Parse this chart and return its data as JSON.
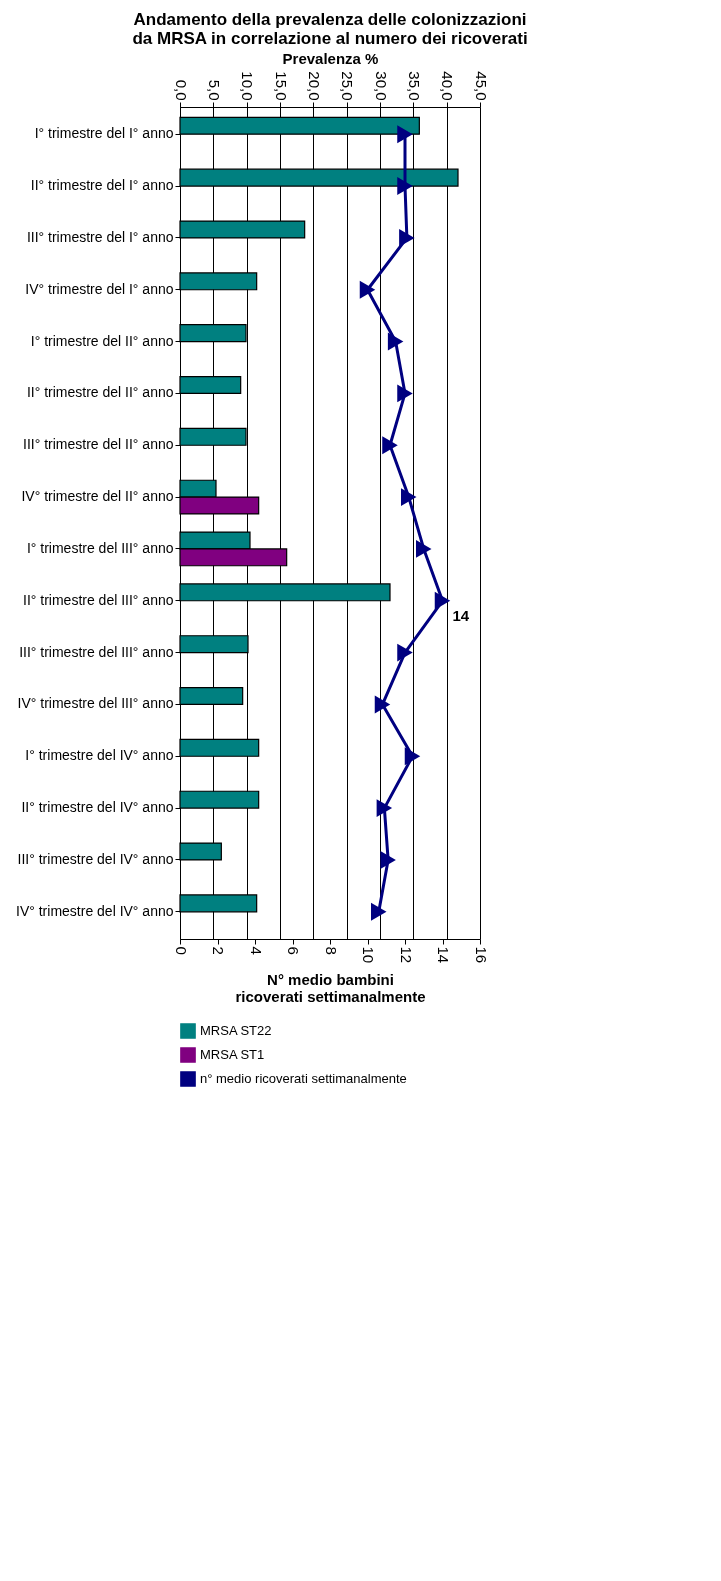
{
  "chart_data": {
    "type": "bar",
    "orientation": "horizontal",
    "title": "Andamento della prevalenza delle colonizzazioni da MRSA in correlazione al numero dei ricoverati",
    "xlabel": "Prevalenza %",
    "x2label": "N° medio bambini ricoverati settimanalmente",
    "categories": [
      "I° trimestre del I° anno",
      "II° trimestre del I° anno",
      "III° trimestre del I° anno",
      "IV° trimestre del I° anno",
      "I° trimestre del II° anno",
      "II° trimestre del II° anno",
      "III° trimestre del II° anno",
      "IV° trimestre del II° anno",
      "I° trimestre del III° anno",
      "II° trimestre del III° anno",
      "III° trimestre del III° anno",
      "IV° trimestre del III° anno",
      "I° trimestre del IV° anno",
      "II° trimestre del IV° anno",
      "III° trimestre del IV° anno",
      "IV° trimestre del IV° anno"
    ],
    "series": [
      {
        "name": "MRSA ST22",
        "color": "#008080",
        "values": [
          35.9,
          41.7,
          18.7,
          11.5,
          9.9,
          9.1,
          9.9,
          5.4,
          10.5,
          31.5,
          10.2,
          9.4,
          11.8,
          11.8,
          6.2,
          11.5
        ]
      },
      {
        "name": "MRSA ST1",
        "color": "#800080",
        "values": [
          null,
          null,
          null,
          null,
          null,
          null,
          null,
          11.8,
          16.0,
          null,
          null,
          null,
          null,
          null,
          null,
          null
        ]
      },
      {
        "name": "n° medio ricoverati settimanalmente",
        "color": "#000080",
        "type": "line",
        "axis": "x2",
        "marker": "triangle",
        "line_style": "solid",
        "values": [
          12.0,
          12.0,
          12.1,
          10.0,
          11.5,
          12.0,
          11.2,
          12.2,
          13.0,
          14.0,
          12.0,
          10.8,
          12.4,
          10.9,
          11.1,
          10.6
        ],
        "value_labels": [
          null,
          null,
          null,
          null,
          null,
          null,
          null,
          null,
          null,
          "14",
          null,
          null,
          null,
          null,
          null,
          null
        ]
      }
    ],
    "xlim": [
      0,
      45
    ],
    "xticks": [
      {
        "value": 0,
        "label": "0,0"
      },
      {
        "value": 5,
        "label": "5,0"
      },
      {
        "value": 10,
        "label": "10,0"
      },
      {
        "value": 15,
        "label": "15,0"
      },
      {
        "value": 20,
        "label": "20,0"
      },
      {
        "value": 25,
        "label": "25,0"
      },
      {
        "value": 30,
        "label": "30,0"
      },
      {
        "value": 35,
        "label": "35,0"
      },
      {
        "value": 40,
        "label": "40,0"
      },
      {
        "value": 45,
        "label": "45,0"
      }
    ],
    "x2lim": [
      0,
      16
    ],
    "x2ticks": [
      0,
      2,
      4,
      6,
      8,
      10,
      12,
      14,
      16
    ],
    "grid": "x",
    "legend": "bottom"
  }
}
